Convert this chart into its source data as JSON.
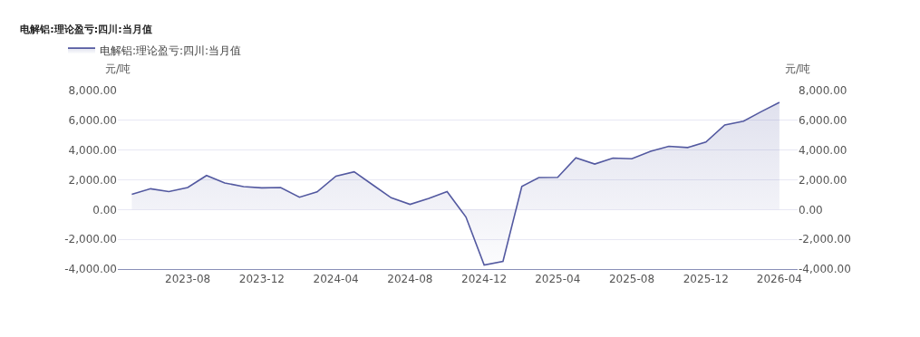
{
  "chart_data": {
    "type": "area",
    "title": "电解铝:理论盈亏:四川:当月值",
    "ylabel": "元/吨",
    "y2label": "元/吨",
    "x": [
      "2023-05",
      "2023-06",
      "2023-07",
      "2023-08",
      "2023-09",
      "2023-10",
      "2023-11",
      "2023-12",
      "2024-01",
      "2024-02",
      "2024-03",
      "2024-04",
      "2024-05",
      "2024-06",
      "2024-07",
      "2024-08",
      "2024-09",
      "2024-10",
      "2024-11",
      "2024-12",
      "2025-01",
      "2025-02",
      "2025-03",
      "2025-04",
      "2025-05",
      "2025-06",
      "2025-07",
      "2025-08",
      "2025-09",
      "2025-10",
      "2025-11",
      "2025-12",
      "2026-01",
      "2026-02",
      "2026-03",
      "2026-04"
    ],
    "series": [
      {
        "name": "电解铝:理论盈亏:四川:当月值",
        "color": "#5359a0",
        "values": [
          1020,
          1400,
          1210,
          1480,
          2290,
          1790,
          1540,
          1460,
          1480,
          830,
          1190,
          2250,
          2540,
          1650,
          790,
          350,
          750,
          1210,
          -500,
          -3730,
          -3480,
          1560,
          2150,
          2170,
          3480,
          3060,
          3460,
          3420,
          3920,
          4250,
          4170,
          4540,
          5690,
          5940,
          6560,
          7210
        ]
      }
    ],
    "xlim": [
      "2023-04-08",
      "2026-05-01"
    ],
    "xticks": [
      "2023-08",
      "2023-12",
      "2024-04",
      "2024-08",
      "2024-12",
      "2025-04",
      "2025-08",
      "2025-12",
      "2026-04"
    ],
    "ylim": [
      -4000,
      8000
    ],
    "yticks": [
      {
        "value": -4000,
        "label": "-4,000.00"
      },
      {
        "value": -2000,
        "label": "-2,000.00"
      },
      {
        "value": 0,
        "label": "0.00"
      },
      {
        "value": 2000,
        "label": "2,000.00"
      },
      {
        "value": 4000,
        "label": "4,000.00"
      },
      {
        "value": 6000,
        "label": "6,000.00"
      },
      {
        "value": 8000,
        "label": "8,000.00"
      }
    ],
    "y2lim": [
      -4000,
      8000
    ],
    "y2ticks": [
      {
        "value": -4000,
        "label": "-4,000.00"
      },
      {
        "value": -2000,
        "label": "-2,000.00"
      },
      {
        "value": 0,
        "label": "0.00"
      },
      {
        "value": 2000,
        "label": "2,000.00"
      },
      {
        "value": 4000,
        "label": "4,000.00"
      },
      {
        "value": 6000,
        "label": "6,000.00"
      },
      {
        "value": 8000,
        "label": "8,000.00"
      }
    ],
    "grid": "y",
    "legend": "top left",
    "marker": "none",
    "line_style": "solid"
  }
}
